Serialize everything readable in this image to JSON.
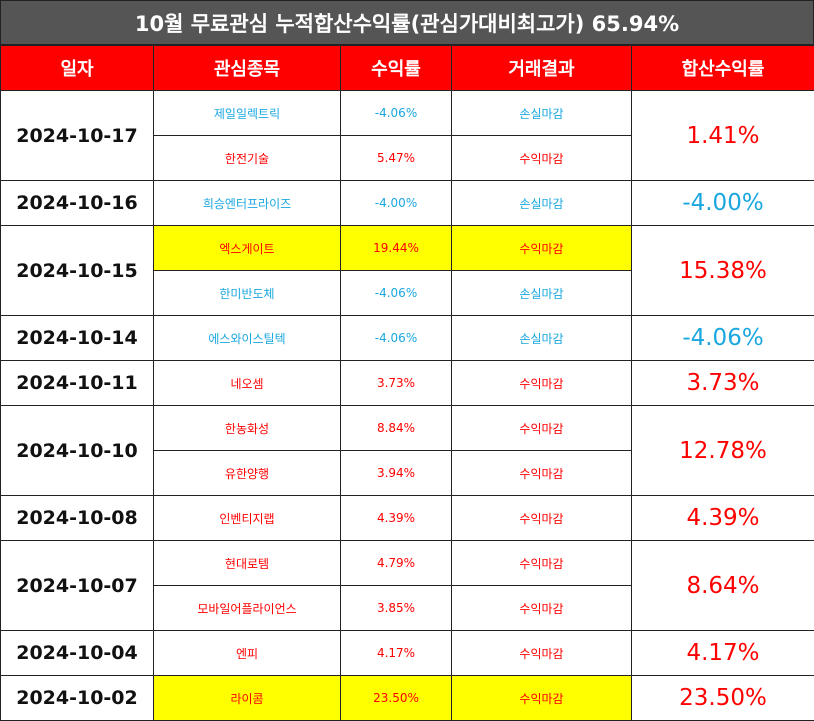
{
  "title": "10월 무료관심 누적합산수익률(관심가대비최고가) 65.94%",
  "headers": [
    "일자",
    "관심종목",
    "수익률",
    "거래결과",
    "합산수익률"
  ],
  "colors": {
    "header_bg": "#ff0000",
    "title_bg": "#555555",
    "positive": "#ff0000",
    "negative": "#1aa7e0",
    "highlight": "#ffff00"
  },
  "groups": [
    {
      "date": "2024-10-17",
      "sum": "1.41%",
      "sum_sign": "pos",
      "rows": [
        {
          "stock": "제일일렉트릭",
          "rate": "-4.06%",
          "result": "손실마감",
          "sign": "neg",
          "highlight": false
        },
        {
          "stock": "한전기술",
          "rate": "5.47%",
          "result": "수익마감",
          "sign": "pos",
          "highlight": false
        }
      ]
    },
    {
      "date": "2024-10-16",
      "sum": "-4.00%",
      "sum_sign": "neg",
      "rows": [
        {
          "stock": "희승엔터프라이즈",
          "rate": "-4.00%",
          "result": "손실마감",
          "sign": "neg",
          "highlight": false
        }
      ]
    },
    {
      "date": "2024-10-15",
      "sum": "15.38%",
      "sum_sign": "pos",
      "rows": [
        {
          "stock": "엑스게이트",
          "rate": "19.44%",
          "result": "수익마감",
          "sign": "pos",
          "highlight": true
        },
        {
          "stock": "한미반도체",
          "rate": "-4.06%",
          "result": "손실마감",
          "sign": "neg",
          "highlight": false
        }
      ]
    },
    {
      "date": "2024-10-14",
      "sum": "-4.06%",
      "sum_sign": "neg",
      "rows": [
        {
          "stock": "에스와이스틸텍",
          "rate": "-4.06%",
          "result": "손실마감",
          "sign": "neg",
          "highlight": false
        }
      ]
    },
    {
      "date": "2024-10-11",
      "sum": "3.73%",
      "sum_sign": "pos",
      "rows": [
        {
          "stock": "네오셈",
          "rate": "3.73%",
          "result": "수익마감",
          "sign": "pos",
          "highlight": false
        }
      ]
    },
    {
      "date": "2024-10-10",
      "sum": "12.78%",
      "sum_sign": "pos",
      "rows": [
        {
          "stock": "한농화성",
          "rate": "8.84%",
          "result": "수익마감",
          "sign": "pos",
          "highlight": false
        },
        {
          "stock": "유한양행",
          "rate": "3.94%",
          "result": "수익마감",
          "sign": "pos",
          "highlight": false
        }
      ]
    },
    {
      "date": "2024-10-08",
      "sum": "4.39%",
      "sum_sign": "pos",
      "rows": [
        {
          "stock": "인벤티지랩",
          "rate": "4.39%",
          "result": "수익마감",
          "sign": "pos",
          "highlight": false
        }
      ]
    },
    {
      "date": "2024-10-07",
      "sum": "8.64%",
      "sum_sign": "pos",
      "rows": [
        {
          "stock": "현대로템",
          "rate": "4.79%",
          "result": "수익마감",
          "sign": "pos",
          "highlight": false
        },
        {
          "stock": "모바일어플라이언스",
          "rate": "3.85%",
          "result": "수익마감",
          "sign": "pos",
          "highlight": false
        }
      ]
    },
    {
      "date": "2024-10-04",
      "sum": "4.17%",
      "sum_sign": "pos",
      "rows": [
        {
          "stock": "엔피",
          "rate": "4.17%",
          "result": "수익마감",
          "sign": "pos",
          "highlight": false
        }
      ]
    },
    {
      "date": "2024-10-02",
      "sum": "23.50%",
      "sum_sign": "pos",
      "rows": [
        {
          "stock": "라이콤",
          "rate": "23.50%",
          "result": "수익마감",
          "sign": "pos",
          "highlight": true
        }
      ]
    }
  ]
}
